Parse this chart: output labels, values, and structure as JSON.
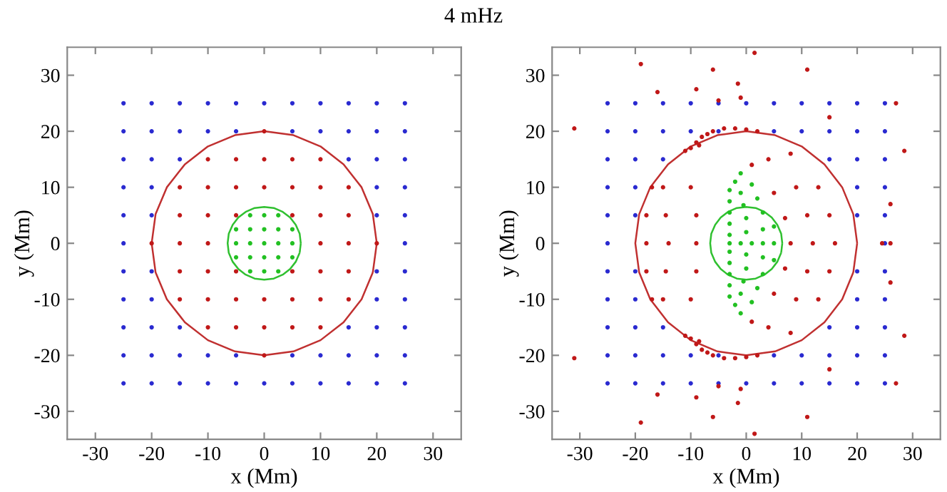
{
  "chart_data": [
    {
      "type": "scatter",
      "title": "4 mHz",
      "xlabel": "x (Mm)",
      "ylabel": "y (Mm)",
      "xlim": [
        -35,
        35
      ],
      "ylim": [
        -35,
        35
      ],
      "xticks": [
        -30,
        -20,
        -10,
        0,
        10,
        20,
        30
      ],
      "yticks": [
        -30,
        -20,
        -10,
        0,
        10,
        20,
        30
      ],
      "grid": false,
      "marker": "circle",
      "series": [
        {
          "color": "#2a2ad0",
          "x": [
            -25,
            -20,
            -15,
            -10,
            -5,
            0,
            5,
            10,
            15,
            20,
            25,
            -25,
            -20,
            -15,
            -10,
            -5,
            5,
            10,
            15,
            20,
            25,
            -25,
            -20,
            -15,
            15,
            20,
            25,
            -25,
            -20,
            20,
            25,
            -25,
            -20,
            20,
            25,
            -25,
            25,
            -25,
            -20,
            20,
            25,
            -25,
            -20,
            20,
            25,
            -25,
            -20,
            -15,
            15,
            20,
            25,
            -25,
            -20,
            -15,
            -10,
            -5,
            5,
            10,
            15,
            20,
            25,
            -25,
            -20,
            -15,
            -10,
            -5,
            0,
            5,
            10,
            15,
            20,
            25
          ],
          "values": [
            25,
            25,
            25,
            25,
            25,
            25,
            25,
            25,
            25,
            25,
            25,
            20,
            20,
            20,
            20,
            20,
            20,
            20,
            20,
            20,
            20,
            15,
            15,
            15,
            15,
            15,
            15,
            10,
            10,
            10,
            10,
            5,
            5,
            5,
            5,
            0,
            0,
            -5,
            -5,
            -5,
            -5,
            -10,
            -10,
            -10,
            -10,
            -15,
            -15,
            -15,
            -15,
            -15,
            -15,
            -20,
            -20,
            -20,
            -20,
            -20,
            -20,
            -20,
            -20,
            -20,
            -20,
            -25,
            -25,
            -25,
            -25,
            -25,
            -25,
            -25,
            -25,
            -25,
            -25,
            -25
          ]
        },
        {
          "color": "#c01818",
          "x": [
            -20,
            -15,
            -10,
            10,
            15,
            20,
            -15,
            -10,
            -5,
            5,
            10,
            15,
            -15,
            -10,
            -5,
            5,
            10,
            15,
            -15,
            -10,
            -5,
            0,
            5,
            10,
            15,
            -15,
            -10,
            -5,
            0,
            5,
            10,
            15,
            -10,
            -5,
            0,
            5,
            10,
            -10,
            -5,
            0,
            5,
            10,
            0,
            0
          ],
          "values": [
            0,
            0,
            0,
            0,
            0,
            0,
            5,
            5,
            5,
            5,
            5,
            5,
            -5,
            -5,
            -5,
            -5,
            -5,
            -5,
            10,
            10,
            10,
            10,
            10,
            10,
            10,
            -10,
            -10,
            -10,
            -10,
            -10,
            -10,
            -10,
            15,
            15,
            15,
            15,
            15,
            -15,
            -15,
            -15,
            -15,
            -15,
            20,
            -20
          ]
        },
        {
          "color": "#22c022",
          "x": [
            -2.5,
            0,
            2.5,
            -5,
            -2.5,
            0,
            2.5,
            5,
            -5,
            -2.5,
            0,
            2.5,
            5,
            -5,
            -2.5,
            0,
            2.5,
            5,
            -2.5,
            0,
            2.5
          ],
          "values": [
            5,
            5,
            5,
            2.5,
            2.5,
            2.5,
            2.5,
            2.5,
            0,
            0,
            0,
            0,
            0,
            -2.5,
            -2.5,
            -2.5,
            -2.5,
            -2.5,
            -5,
            -5,
            -5
          ]
        },
        {
          "type": "line",
          "marker": "none",
          "color": "#c03030",
          "x": [
            20,
            19.3,
            17.3,
            14.1,
            10,
            5.2,
            0,
            -5.2,
            -10,
            -14.1,
            -17.3,
            -19.3,
            -20,
            -19.3,
            -17.3,
            -14.1,
            -10,
            -5.2,
            0,
            5.2,
            10,
            14.1,
            17.3,
            19.3
          ],
          "values": [
            0,
            5.2,
            10,
            14.1,
            17.3,
            19.3,
            20,
            19.3,
            17.3,
            14.1,
            10,
            5.2,
            0,
            -5.2,
            -10,
            -14.1,
            -17.3,
            -19.3,
            -20,
            -19.3,
            -17.3,
            -14.1,
            -10,
            -5.2
          ]
        },
        {
          "type": "line",
          "marker": "none",
          "color": "#30c030",
          "x": [
            6.5,
            6.3,
            5.6,
            4.6,
            3.3,
            1.7,
            0,
            -1.7,
            -3.3,
            -4.6,
            -5.6,
            -6.3,
            -6.5,
            -6.3,
            -5.6,
            -4.6,
            -3.3,
            -1.7,
            0,
            1.7,
            3.3,
            4.6,
            5.6,
            6.3
          ],
          "values": [
            0,
            1.7,
            3.3,
            4.6,
            5.6,
            6.3,
            6.5,
            6.3,
            5.6,
            4.6,
            3.3,
            1.7,
            0,
            -1.7,
            -3.3,
            -4.6,
            -5.6,
            -6.3,
            -6.5,
            -6.3,
            -5.6,
            -4.6,
            -3.3,
            -1.7
          ]
        }
      ]
    },
    {
      "type": "scatter",
      "xlabel": "x (Mm)",
      "ylabel": "y (Mm)",
      "xlim": [
        -35,
        35
      ],
      "ylim": [
        -35,
        35
      ],
      "xticks": [
        -30,
        -20,
        -10,
        0,
        10,
        20,
        30
      ],
      "yticks": [
        -30,
        -20,
        -10,
        0,
        10,
        20,
        30
      ],
      "grid": false,
      "marker": "circle",
      "series": [
        {
          "color": "#2a2ad0",
          "x": [
            -25,
            -20,
            -15,
            -10,
            -5,
            0,
            5,
            10,
            15,
            20,
            25,
            -25,
            -20,
            -15,
            -10,
            -5,
            5,
            10,
            15,
            20,
            25,
            -25,
            -20,
            -15,
            15,
            20,
            25,
            -25,
            -20,
            20,
            25,
            -25,
            -20,
            20,
            25,
            -25,
            25,
            -25,
            -20,
            20,
            25,
            -25,
            -20,
            20,
            25,
            -25,
            -20,
            -15,
            15,
            20,
            25,
            -25,
            -20,
            -15,
            -10,
            -5,
            5,
            10,
            15,
            20,
            25,
            -25,
            -20,
            -15,
            -10,
            -5,
            0,
            5,
            10,
            15,
            20,
            25
          ],
          "values": [
            25,
            25,
            25,
            25,
            25,
            25,
            25,
            25,
            25,
            25,
            25,
            20,
            20,
            20,
            20,
            20,
            20,
            20,
            20,
            20,
            20,
            15,
            15,
            15,
            15,
            15,
            15,
            10,
            10,
            10,
            10,
            5,
            5,
            5,
            5,
            0,
            0,
            -5,
            -5,
            -5,
            -5,
            -10,
            -10,
            -10,
            -10,
            -15,
            -15,
            -15,
            -15,
            -15,
            -15,
            -20,
            -20,
            -20,
            -20,
            -20,
            -20,
            -20,
            -20,
            -20,
            -20,
            -25,
            -25,
            -25,
            -25,
            -25,
            -25,
            -25,
            -25,
            -25,
            -25,
            -25
          ]
        },
        {
          "color": "#c01818",
          "x": [
            -11,
            -10,
            -9,
            -8.5,
            -8,
            -7,
            -6,
            -4,
            -2,
            0,
            2,
            -11,
            -10,
            -9,
            -8.5,
            -8,
            -7,
            -6,
            -4,
            -2,
            0,
            2,
            1,
            5,
            7,
            4,
            9,
            11,
            8,
            13,
            15,
            -10,
            -9,
            -15,
            -14.5,
            -17,
            -18,
            1,
            5,
            7,
            4,
            9,
            11,
            8,
            13,
            15,
            -10,
            -9,
            -15,
            -14.5,
            -17,
            -18,
            8,
            12,
            16,
            -9,
            -14,
            -18,
            -31,
            -31,
            -19,
            -19,
            -16,
            -16,
            -9,
            -9,
            -6,
            -6,
            -1.5,
            -1.5,
            1.5,
            1.5,
            11,
            11,
            27,
            27,
            28.5,
            28.5,
            26,
            26,
            26,
            24.5,
            -1,
            -1,
            -5,
            -5,
            15,
            15
          ],
          "values": [
            16.5,
            17,
            18,
            17.5,
            19,
            19.5,
            20,
            20.5,
            20.5,
            20.3,
            20,
            -16.5,
            -17,
            -18,
            -17.5,
            -19,
            -19.5,
            -20,
            -20.5,
            -20.5,
            -20.3,
            -20,
            14,
            9,
            4.5,
            15,
            10,
            5,
            16,
            10,
            5,
            10,
            5,
            10,
            5,
            10,
            5,
            -14,
            -9,
            -4.5,
            -15,
            -10,
            -5,
            -16,
            -10,
            -5,
            -10,
            -5,
            -10,
            -5,
            -10,
            -5,
            0,
            0,
            0,
            0,
            0,
            0,
            20.5,
            -20.5,
            32,
            -32,
            27,
            -27,
            27.5,
            -27.5,
            31,
            -31,
            28.5,
            -28.5,
            34,
            -34,
            31,
            -31,
            25,
            -25,
            16.5,
            -16.5,
            7,
            -7,
            0,
            0,
            26,
            -26,
            25.5,
            -25.5,
            22.5,
            -22.5
          ]
        },
        {
          "color": "#22c022",
          "x": [
            -3,
            -1,
            1,
            3,
            5,
            -3,
            0,
            3,
            5,
            -3,
            0,
            3,
            -3,
            -0.5,
            2,
            -3,
            -1,
            1,
            -3,
            -2,
            -1,
            -3,
            0,
            3,
            5,
            -3,
            0,
            3,
            -3,
            -0.5,
            2,
            -3,
            -1,
            1,
            -3,
            -2,
            -1
          ],
          "values": [
            0,
            0,
            0,
            0,
            0,
            1.5,
            2,
            2.5,
            3,
            3.5,
            4.5,
            5.5,
            5.5,
            6.8,
            8,
            7.5,
            9,
            10.5,
            9.5,
            11,
            12.5,
            -1.5,
            -2,
            -2.5,
            -3,
            -3.5,
            -4.5,
            -5.5,
            -5.5,
            -6.8,
            -8,
            -7.5,
            -9,
            -10.5,
            -9.5,
            -11,
            -12.5
          ]
        },
        {
          "type": "line",
          "marker": "none",
          "color": "#c03030",
          "x": [
            20,
            19.3,
            17.3,
            14.1,
            10,
            5.2,
            0,
            -5.2,
            -10,
            -14.1,
            -17.3,
            -19.3,
            -20,
            -19.3,
            -17.3,
            -14.1,
            -10,
            -5.2,
            0,
            5.2,
            10,
            14.1,
            17.3,
            19.3
          ],
          "values": [
            0,
            5.2,
            10,
            14.1,
            17.3,
            19.3,
            20,
            19.3,
            17.3,
            14.1,
            10,
            5.2,
            0,
            -5.2,
            -10,
            -14.1,
            -17.3,
            -19.3,
            -20,
            -19.3,
            -17.3,
            -14.1,
            -10,
            -5.2
          ]
        },
        {
          "type": "line",
          "marker": "none",
          "color": "#30c030",
          "x": [
            6.5,
            6.3,
            5.6,
            4.6,
            3.3,
            1.7,
            0,
            -1.7,
            -3.3,
            -4.6,
            -5.6,
            -6.3,
            -6.5,
            -6.3,
            -5.6,
            -4.6,
            -3.3,
            -1.7,
            0,
            1.7,
            3.3,
            4.6,
            5.6,
            6.3
          ],
          "values": [
            0,
            1.7,
            3.3,
            4.6,
            5.6,
            6.3,
            6.5,
            6.3,
            5.6,
            4.6,
            3.3,
            1.7,
            0,
            -1.7,
            -3.3,
            -4.6,
            -5.6,
            -6.3,
            -6.5,
            -6.3,
            -5.6,
            -4.6,
            -3.3,
            -1.7
          ]
        }
      ]
    }
  ]
}
